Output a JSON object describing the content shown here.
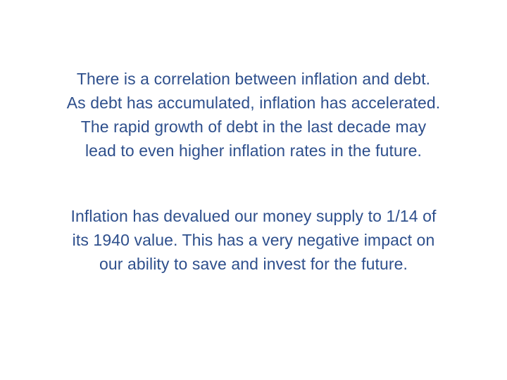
{
  "slide": {
    "text_color": "#2e4f8c",
    "background_color": "#ffffff",
    "paragraphs": [
      {
        "lines": [
          "There is a correlation between inflation and debt.",
          "As debt has accumulated, inflation has accelerated.",
          "The rapid growth of debt in the last decade may",
          "lead to even higher inflation rates in the future."
        ]
      },
      {
        "lines": [
          "Inflation has devalued our money supply to 1/14 of",
          "its 1940 value. This has a very negative impact on",
          "our ability to save and invest for the future."
        ]
      }
    ]
  }
}
